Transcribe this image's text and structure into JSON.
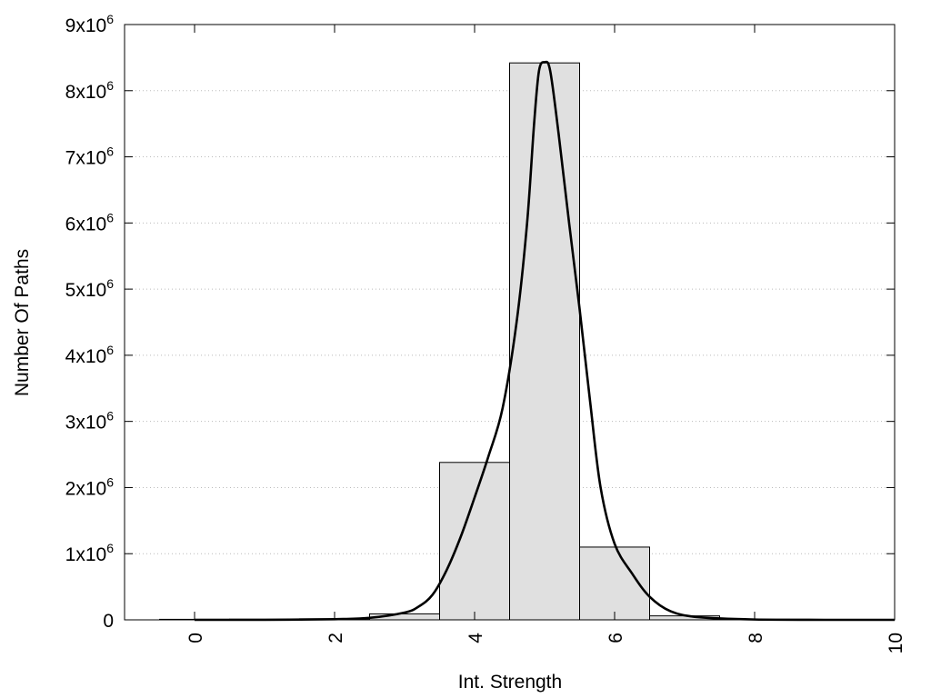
{
  "chart_data": {
    "type": "bar",
    "title": "",
    "xlabel": "Int. Strength",
    "ylabel": "Number Of Paths",
    "xlim": [
      -1,
      10
    ],
    "ylim": [
      0,
      9000000
    ],
    "grid": "horizontal dotted",
    "legend": "none",
    "x_ticks": [
      {
        "value": 0,
        "label": "0"
      },
      {
        "value": 2,
        "label": "2"
      },
      {
        "value": 4,
        "label": "4"
      },
      {
        "value": 6,
        "label": "6"
      },
      {
        "value": 8,
        "label": "8"
      },
      {
        "value": 10,
        "label": "10"
      }
    ],
    "y_ticks": [
      {
        "value": 0,
        "mant": "0",
        "exp": ""
      },
      {
        "value": 1000000,
        "mant": "1x10",
        "exp": "6"
      },
      {
        "value": 2000000,
        "mant": "2x10",
        "exp": "6"
      },
      {
        "value": 3000000,
        "mant": "3x10",
        "exp": "6"
      },
      {
        "value": 4000000,
        "mant": "4x10",
        "exp": "6"
      },
      {
        "value": 5000000,
        "mant": "5x10",
        "exp": "6"
      },
      {
        "value": 6000000,
        "mant": "6x10",
        "exp": "6"
      },
      {
        "value": 7000000,
        "mant": "7x10",
        "exp": "6"
      },
      {
        "value": 8000000,
        "mant": "8x10",
        "exp": "6"
      },
      {
        "value": 9000000,
        "mant": "9x10",
        "exp": "6"
      }
    ],
    "bar_width": 1,
    "bars": [
      {
        "x": 0,
        "y": 8000
      },
      {
        "x": 1,
        "y": 10000
      },
      {
        "x": 2,
        "y": 15000
      },
      {
        "x": 3,
        "y": 90000
      },
      {
        "x": 4,
        "y": 2380000
      },
      {
        "x": 5,
        "y": 8420000
      },
      {
        "x": 6,
        "y": 1100000
      },
      {
        "x": 7,
        "y": 60000
      },
      {
        "x": 8,
        "y": 8000
      },
      {
        "x": 9,
        "y": 3000
      }
    ],
    "curve": [
      {
        "x": 0,
        "y": 0
      },
      {
        "x": 1,
        "y": 0
      },
      {
        "x": 2,
        "y": 10000
      },
      {
        "x": 2.5,
        "y": 30000
      },
      {
        "x": 3,
        "y": 110000
      },
      {
        "x": 3.2,
        "y": 200000
      },
      {
        "x": 3.4,
        "y": 380000
      },
      {
        "x": 3.6,
        "y": 750000
      },
      {
        "x": 3.8,
        "y": 1250000
      },
      {
        "x": 4,
        "y": 1850000
      },
      {
        "x": 4.2,
        "y": 2480000
      },
      {
        "x": 4.4,
        "y": 3200000
      },
      {
        "x": 4.6,
        "y": 4500000
      },
      {
        "x": 4.75,
        "y": 6000000
      },
      {
        "x": 4.85,
        "y": 7500000
      },
      {
        "x": 4.92,
        "y": 8300000
      },
      {
        "x": 5.0,
        "y": 8430000
      },
      {
        "x": 5.08,
        "y": 8300000
      },
      {
        "x": 5.2,
        "y": 7350000
      },
      {
        "x": 5.35,
        "y": 6000000
      },
      {
        "x": 5.5,
        "y": 4700000
      },
      {
        "x": 5.65,
        "y": 3300000
      },
      {
        "x": 5.8,
        "y": 2000000
      },
      {
        "x": 6.0,
        "y": 1150000
      },
      {
        "x": 6.25,
        "y": 700000
      },
      {
        "x": 6.5,
        "y": 350000
      },
      {
        "x": 6.8,
        "y": 130000
      },
      {
        "x": 7.2,
        "y": 40000
      },
      {
        "x": 8,
        "y": 5000
      },
      {
        "x": 9,
        "y": 0
      },
      {
        "x": 10,
        "y": 0
      }
    ]
  }
}
